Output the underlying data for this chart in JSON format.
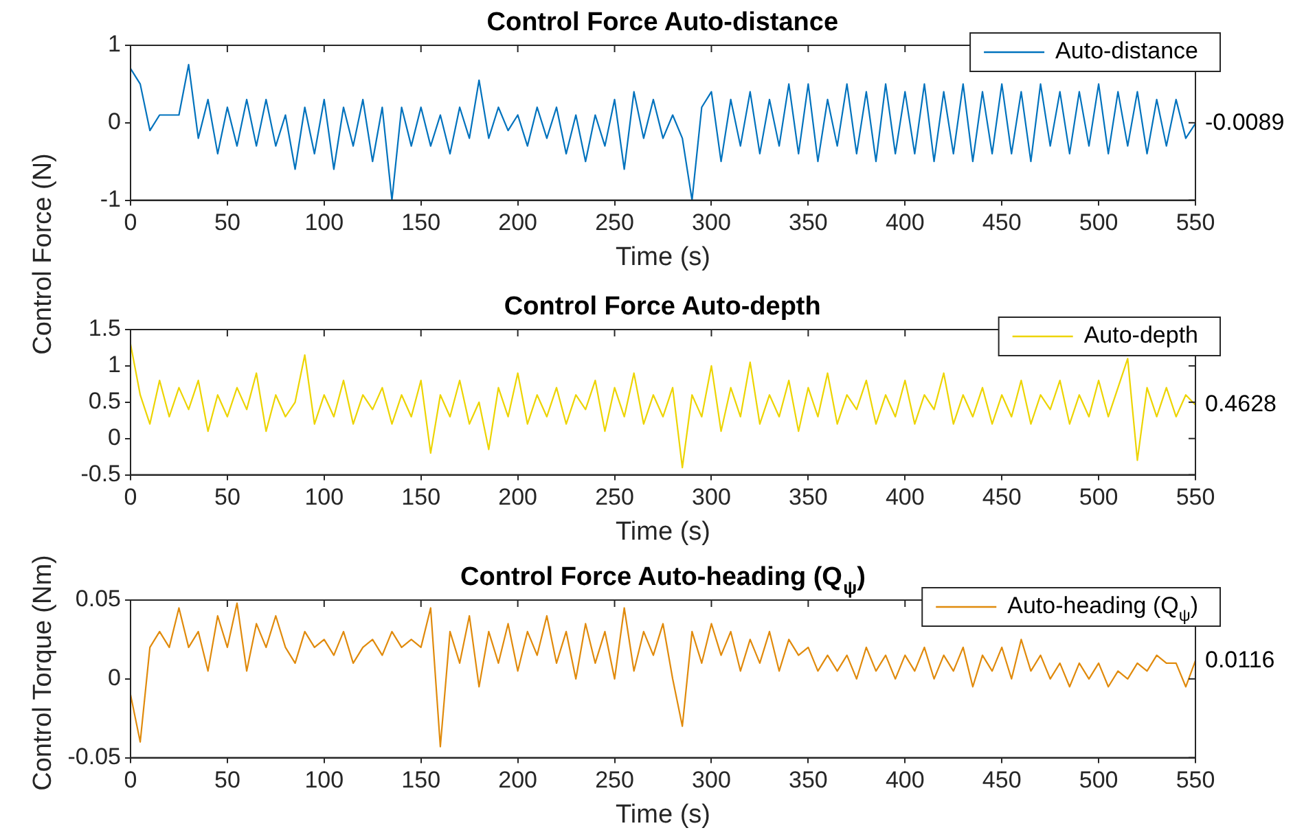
{
  "chart_data": [
    {
      "type": "line",
      "title": "Control Force Auto-distance",
      "xlabel": "Time (s)",
      "ylabel": "Control Force (N)",
      "legend": "top right",
      "grid": false,
      "xlim": [
        0,
        550
      ],
      "xticks": [
        0,
        50,
        100,
        150,
        200,
        250,
        300,
        350,
        400,
        450,
        500,
        550
      ],
      "ylim": [
        -1,
        1
      ],
      "yticks": [
        -1,
        0,
        1
      ],
      "annotations": [
        "-0.0089"
      ],
      "x": [
        0,
        5,
        10,
        15,
        20,
        25,
        30,
        35,
        40,
        45,
        50,
        55,
        60,
        65,
        70,
        75,
        80,
        85,
        90,
        95,
        100,
        105,
        110,
        115,
        120,
        125,
        130,
        135,
        140,
        145,
        150,
        155,
        160,
        165,
        170,
        175,
        180,
        185,
        190,
        195,
        200,
        205,
        210,
        215,
        220,
        225,
        230,
        235,
        240,
        245,
        250,
        255,
        260,
        265,
        270,
        275,
        280,
        285,
        290,
        295,
        300,
        305,
        310,
        315,
        320,
        325,
        330,
        335,
        340,
        345,
        350,
        355,
        360,
        365,
        370,
        375,
        380,
        385,
        390,
        395,
        400,
        405,
        410,
        415,
        420,
        425,
        430,
        435,
        440,
        445,
        450,
        455,
        460,
        465,
        470,
        475,
        480,
        485,
        490,
        495,
        500,
        505,
        510,
        515,
        520,
        525,
        530,
        535,
        540,
        545,
        550
      ],
      "series": [
        {
          "name": "Auto-distance",
          "color": "#0072bd",
          "values": [
            0.7,
            0.5,
            -0.1,
            0.1,
            0.1,
            0.1,
            0.75,
            -0.2,
            0.3,
            -0.4,
            0.2,
            -0.3,
            0.3,
            -0.3,
            0.3,
            -0.3,
            0.1,
            -0.6,
            0.2,
            -0.4,
            0.3,
            -0.6,
            0.2,
            -0.3,
            0.3,
            -0.5,
            0.2,
            -1,
            0.2,
            -0.3,
            0.2,
            -0.3,
            0.1,
            -0.4,
            0.2,
            -0.2,
            0.55,
            -0.2,
            0.2,
            -0.1,
            0.1,
            -0.3,
            0.2,
            -0.2,
            0.2,
            -0.4,
            0.1,
            -0.5,
            0.1,
            -0.3,
            0.3,
            -0.6,
            0.4,
            -0.2,
            0.3,
            -0.2,
            0.1,
            -0.2,
            -1,
            0.2,
            0.4,
            -0.5,
            0.3,
            -0.3,
            0.4,
            -0.4,
            0.3,
            -0.3,
            0.5,
            -0.4,
            0.5,
            -0.5,
            0.3,
            -0.3,
            0.5,
            -0.4,
            0.4,
            -0.5,
            0.5,
            -0.4,
            0.4,
            -0.4,
            0.5,
            -0.5,
            0.4,
            -0.4,
            0.5,
            -0.5,
            0.4,
            -0.4,
            0.5,
            -0.4,
            0.4,
            -0.5,
            0.5,
            -0.3,
            0.4,
            -0.4,
            0.4,
            -0.3,
            0.5,
            -0.4,
            0.4,
            -0.3,
            0.4,
            -0.4,
            0.3,
            -0.3,
            0.3,
            -0.2,
            -0.0089
          ]
        }
      ]
    },
    {
      "type": "line",
      "title": "Control Force Auto-depth",
      "xlabel": "Time (s)",
      "legend": "top right",
      "grid": false,
      "xlim": [
        0,
        550
      ],
      "xticks": [
        0,
        50,
        100,
        150,
        200,
        250,
        300,
        350,
        400,
        450,
        500,
        550
      ],
      "ylim": [
        -0.5,
        1.5
      ],
      "yticks": [
        -0.5,
        0,
        0.5,
        1,
        1.5
      ],
      "annotations": [
        "0.4628"
      ],
      "x": [
        0,
        5,
        10,
        15,
        20,
        25,
        30,
        35,
        40,
        45,
        50,
        55,
        60,
        65,
        70,
        75,
        80,
        85,
        90,
        95,
        100,
        105,
        110,
        115,
        120,
        125,
        130,
        135,
        140,
        145,
        150,
        155,
        160,
        165,
        170,
        175,
        180,
        185,
        190,
        195,
        200,
        205,
        210,
        215,
        220,
        225,
        230,
        235,
        240,
        245,
        250,
        255,
        260,
        265,
        270,
        275,
        280,
        285,
        290,
        295,
        300,
        305,
        310,
        315,
        320,
        325,
        330,
        335,
        340,
        345,
        350,
        355,
        360,
        365,
        370,
        375,
        380,
        385,
        390,
        395,
        400,
        405,
        410,
        415,
        420,
        425,
        430,
        435,
        440,
        445,
        450,
        455,
        460,
        465,
        470,
        475,
        480,
        485,
        490,
        495,
        500,
        505,
        510,
        515,
        520,
        525,
        530,
        535,
        540,
        545,
        550
      ],
      "series": [
        {
          "name": "Auto-depth",
          "color": "#edd400",
          "values": [
            1.3,
            0.6,
            0.2,
            0.8,
            0.3,
            0.7,
            0.4,
            0.8,
            0.1,
            0.6,
            0.3,
            0.7,
            0.4,
            0.9,
            0.1,
            0.6,
            0.3,
            0.5,
            1.15,
            0.2,
            0.6,
            0.3,
            0.8,
            0.2,
            0.6,
            0.4,
            0.7,
            0.2,
            0.6,
            0.3,
            0.8,
            -0.2,
            0.6,
            0.3,
            0.8,
            0.2,
            0.5,
            -0.15,
            0.7,
            0.3,
            0.9,
            0.2,
            0.6,
            0.3,
            0.7,
            0.2,
            0.6,
            0.4,
            0.8,
            0.1,
            0.7,
            0.3,
            0.9,
            0.2,
            0.6,
            0.3,
            0.7,
            -0.4,
            0.6,
            0.3,
            1.0,
            0.1,
            0.7,
            0.3,
            1.05,
            0.2,
            0.6,
            0.3,
            0.8,
            0.1,
            0.7,
            0.3,
            0.9,
            0.2,
            0.6,
            0.4,
            0.8,
            0.2,
            0.6,
            0.3,
            0.8,
            0.2,
            0.6,
            0.4,
            0.9,
            0.2,
            0.6,
            0.3,
            0.7,
            0.2,
            0.6,
            0.3,
            0.8,
            0.2,
            0.6,
            0.4,
            0.8,
            0.2,
            0.6,
            0.3,
            0.8,
            0.3,
            0.7,
            1.1,
            -0.3,
            0.7,
            0.3,
            0.7,
            0.3,
            0.6,
            0.4628
          ]
        }
      ]
    },
    {
      "type": "line",
      "title": "Control Force Auto-heading (Q$_{ψ}$)",
      "xlabel": "Time (s)",
      "ylabel": "Control Torque (Nm)",
      "legend": "top right",
      "grid": false,
      "xlim": [
        0,
        550
      ],
      "xticks": [
        0,
        50,
        100,
        150,
        200,
        250,
        300,
        350,
        400,
        450,
        500,
        550
      ],
      "ylim": [
        -0.05,
        0.05
      ],
      "yticks": [
        -0.05,
        0,
        0.05
      ],
      "annotations": [
        "0.0116"
      ],
      "x": [
        0,
        5,
        10,
        15,
        20,
        25,
        30,
        35,
        40,
        45,
        50,
        55,
        60,
        65,
        70,
        75,
        80,
        85,
        90,
        95,
        100,
        105,
        110,
        115,
        120,
        125,
        130,
        135,
        140,
        145,
        150,
        155,
        160,
        165,
        170,
        175,
        180,
        185,
        190,
        195,
        200,
        205,
        210,
        215,
        220,
        225,
        230,
        235,
        240,
        245,
        250,
        255,
        260,
        265,
        270,
        275,
        280,
        285,
        290,
        295,
        300,
        305,
        310,
        315,
        320,
        325,
        330,
        335,
        340,
        345,
        350,
        355,
        360,
        365,
        370,
        375,
        380,
        385,
        390,
        395,
        400,
        405,
        410,
        415,
        420,
        425,
        430,
        435,
        440,
        445,
        450,
        455,
        460,
        465,
        470,
        475,
        480,
        485,
        490,
        495,
        500,
        505,
        510,
        515,
        520,
        525,
        530,
        535,
        540,
        545,
        550
      ],
      "series": [
        {
          "name": "Auto-heading (Q$_{ψ}$)",
          "color": "#e08a0b",
          "values": [
            -0.01,
            -0.04,
            0.02,
            0.03,
            0.02,
            0.045,
            0.02,
            0.03,
            0.005,
            0.04,
            0.02,
            0.048,
            0.005,
            0.035,
            0.02,
            0.04,
            0.02,
            0.01,
            0.03,
            0.02,
            0.025,
            0.015,
            0.03,
            0.01,
            0.02,
            0.025,
            0.015,
            0.03,
            0.02,
            0.025,
            0.02,
            0.045,
            -0.043,
            0.03,
            0.01,
            0.04,
            -0.005,
            0.03,
            0.01,
            0.035,
            0.005,
            0.03,
            0.015,
            0.04,
            0.01,
            0.03,
            0.0,
            0.035,
            0.01,
            0.03,
            0.0,
            0.045,
            0.005,
            0.03,
            0.015,
            0.035,
            0.0,
            -0.03,
            0.03,
            0.01,
            0.035,
            0.015,
            0.03,
            0.005,
            0.025,
            0.01,
            0.03,
            0.005,
            0.025,
            0.015,
            0.02,
            0.005,
            0.015,
            0.005,
            0.015,
            0.0,
            0.02,
            0.005,
            0.015,
            0.0,
            0.015,
            0.005,
            0.02,
            0.0,
            0.015,
            0.005,
            0.02,
            -0.005,
            0.015,
            0.005,
            0.02,
            0.0,
            0.025,
            0.005,
            0.015,
            0.0,
            0.01,
            -0.005,
            0.01,
            0.0,
            0.01,
            -0.005,
            0.005,
            0.0,
            0.01,
            0.005,
            0.015,
            0.01,
            0.01,
            -0.005,
            0.0116
          ]
        }
      ]
    }
  ]
}
